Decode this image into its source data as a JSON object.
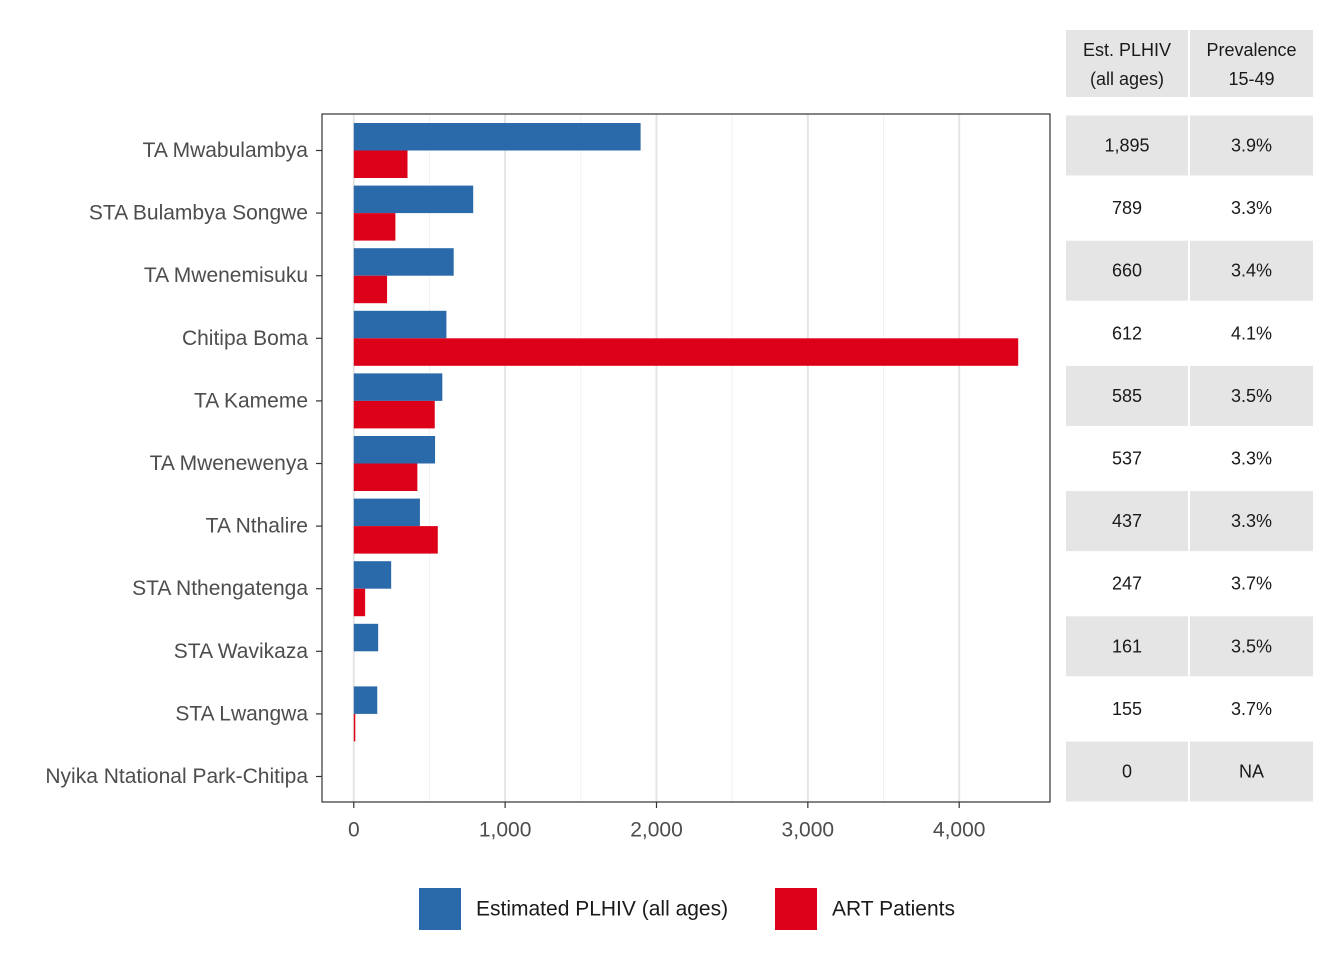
{
  "chart_data": {
    "type": "bar",
    "orientation": "horizontal",
    "categories": [
      "TA Mwabulambya",
      "STA Bulambya Songwe",
      "TA Mwenemisuku",
      "Chitipa Boma",
      "TA Kameme",
      "TA Mwenewenya",
      "TA Nthalire",
      "STA Nthengatenga",
      "STA Wavikaza",
      "STA Lwangwa",
      "Nyika Ntational Park-Chitipa"
    ],
    "series": [
      {
        "name": "Estimated PLHIV (all ages)",
        "color": "#2b6aaa",
        "values": [
          1895,
          789,
          660,
          612,
          585,
          537,
          437,
          247,
          161,
          155,
          0
        ]
      },
      {
        "name": "ART Patients",
        "color": "#dc0019",
        "values": [
          355,
          275,
          220,
          4390,
          535,
          420,
          555,
          75,
          0,
          10,
          0
        ]
      }
    ],
    "xlim": [
      -210,
      4600
    ],
    "xticks": [
      0,
      1000,
      2000,
      3000,
      4000
    ],
    "xtick_labels": [
      "0",
      "1,000",
      "2,000",
      "3,000",
      "4,000"
    ],
    "grid": true,
    "legend_position": "bottom",
    "title": "",
    "xlabel": "",
    "ylabel": ""
  },
  "table": {
    "headers": [
      [
        "Est. PLHIV",
        "(all ages)"
      ],
      [
        "Prevalence",
        "15-49"
      ]
    ],
    "rows": [
      [
        "1,895",
        "3.9%"
      ],
      [
        "789",
        "3.3%"
      ],
      [
        "660",
        "3.4%"
      ],
      [
        "612",
        "4.1%"
      ],
      [
        "585",
        "3.5%"
      ],
      [
        "537",
        "3.3%"
      ],
      [
        "437",
        "3.3%"
      ],
      [
        "247",
        "3.7%"
      ],
      [
        "161",
        "3.5%"
      ],
      [
        "155",
        "3.7%"
      ],
      [
        "0",
        "NA"
      ]
    ]
  }
}
